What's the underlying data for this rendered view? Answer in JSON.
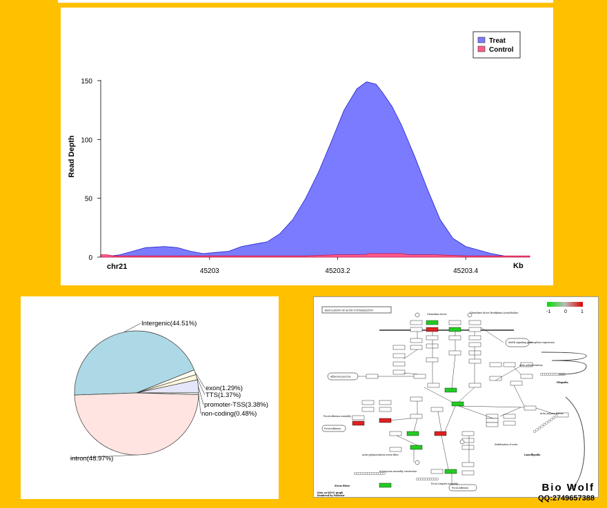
{
  "chart_data": [
    {
      "type": "area",
      "ylabel": "Read Depth",
      "xlabel": "Kb",
      "chrom": "chr21",
      "x_ticks": [
        "45203",
        "45203.2",
        "45203.4"
      ],
      "x_tick_values": [
        45203.0,
        45203.2,
        45203.4
      ],
      "y_ticks": [
        0,
        50,
        100,
        150
      ],
      "xlim": [
        45202.83,
        45203.5
      ],
      "ylim": [
        0,
        150
      ],
      "legend_position": "top-right",
      "series": [
        {
          "name": "Treat",
          "color": "#7B7BFF",
          "x": [
            45202.83,
            45202.86,
            45202.88,
            45202.9,
            45202.93,
            45202.95,
            45202.97,
            45202.99,
            45203.01,
            45203.03,
            45203.05,
            45203.07,
            45203.09,
            45203.11,
            45203.13,
            45203.15,
            45203.17,
            45203.19,
            45203.21,
            45203.23,
            45203.245,
            45203.26,
            45203.27,
            45203.285,
            45203.3,
            45203.32,
            45203.34,
            45203.36,
            45203.38,
            45203.4,
            45203.42,
            45203.44,
            45203.46,
            45203.5
          ],
          "values": [
            0,
            2,
            5,
            8,
            9,
            8,
            5,
            3,
            4,
            5,
            9,
            11,
            13,
            20,
            32,
            50,
            72,
            98,
            125,
            143,
            149,
            147,
            140,
            128,
            112,
            86,
            58,
            32,
            16,
            9,
            6,
            3,
            1,
            0
          ]
        },
        {
          "name": "Control",
          "color": "#FF5C8A",
          "x": [
            45202.83,
            45202.84,
            45202.85,
            45202.9,
            45202.95,
            45203.0,
            45203.05,
            45203.1,
            45203.15,
            45203.2,
            45203.24,
            45203.25,
            45203.3,
            45203.31,
            45203.35,
            45203.4,
            45203.45,
            45203.5
          ],
          "values": [
            2,
            2,
            1,
            1,
            1,
            1,
            1,
            1,
            1,
            2,
            2,
            3,
            3,
            2,
            2,
            1,
            1,
            1
          ]
        }
      ]
    },
    {
      "type": "pie",
      "slices": [
        {
          "label": "Intergenic(44.51%)",
          "value": 44.51,
          "color": "#ADD8E6"
        },
        {
          "label": "exon(1.29%)",
          "value": 1.29,
          "color": "#FFFFF0"
        },
        {
          "label": "TTS(1.37%)",
          "value": 1.37,
          "color": "#FFF8DC"
        },
        {
          "label": "promoter-TSS(3.38%)",
          "value": 3.38,
          "color": "#E6E6FA"
        },
        {
          "label": "non-coding(0.48%)",
          "value": 0.48,
          "color": "#F0FFF0"
        },
        {
          "label": "intron(48.97%)",
          "value": 48.97,
          "color": "#FFE4E1"
        }
      ]
    }
  ],
  "kegg": {
    "title": "REGULATION OF ACTIN CYTOSKELETON",
    "scale_labels": [
      "-1",
      "0",
      "1"
    ],
    "footer_line1": "Data on KEGG graph",
    "footer_line2": "Rendered by Pathview",
    "nodes": {
      "chemokine": "Chemokine factor",
      "chemokine2": "Chemokine factor Bradykinin Acetylcholine",
      "mapk": "MAPK signaling pathway",
      "gene_expr": "Gene expression",
      "actin_poly": "Actin polymerization",
      "filopodia": "Filopodia",
      "adherens": "Adherens junction",
      "focal_adh_mot": "Focal adhesion assembly",
      "focal_adh": "Focal adhesion",
      "actin_poly2": "Actin polymerization",
      "lamellipodia": "Lamellipodia",
      "stress": "Stress fibers",
      "actomyosin": "Actomyosin assembly contraction",
      "focal_adh2": "Focal adhesion",
      "cell_migr": "Focal complex assembly",
      "stabilization": "Stabilization of actin",
      "actin_poly3": "Actin polymerization stress fiber"
    }
  },
  "watermark": {
    "title": "Bio Wolf",
    "qq": "QQ:2749657388"
  }
}
